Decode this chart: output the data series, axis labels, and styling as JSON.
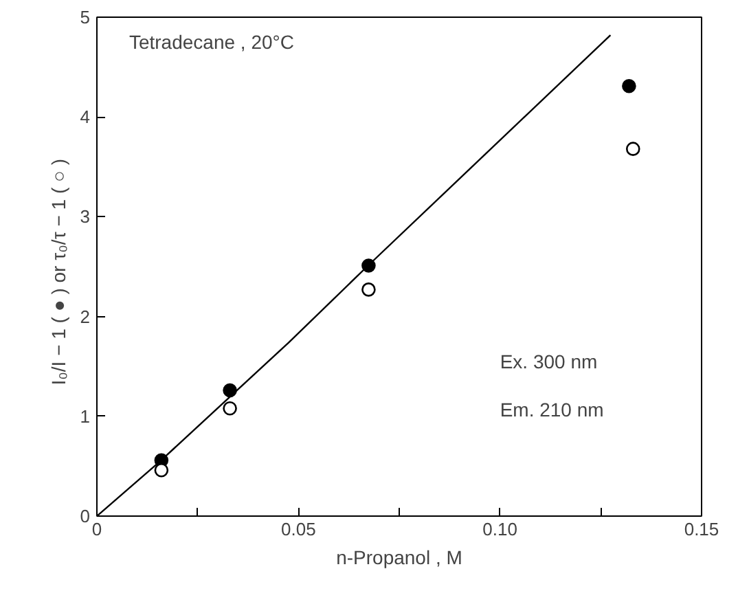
{
  "chart_data": {
    "type": "scatter",
    "xlabel": "n-Propanol , M",
    "ylabel": "I₀/I − 1 ( ● )  or  τ₀/τ − 1 ( ○ )",
    "xlim": [
      0,
      0.15
    ],
    "ylim": [
      0,
      5
    ],
    "xticks": [
      0,
      {
        "value": 0.025,
        "label": null
      },
      0.05,
      {
        "value": 0.075,
        "label": null
      },
      {
        "value": 0.1,
        "label": "0.10"
      },
      {
        "value": 0.125,
        "label": null
      },
      0.15
    ],
    "yticks": [
      0,
      1,
      2,
      3,
      4,
      5
    ],
    "grid": false,
    "annotations": [
      "Tetradecane , 20°C",
      "Ex. 300 nm",
      "Em. 210 nm"
    ],
    "series": [
      {
        "marker": "circle",
        "color": "#000000",
        "x": [
          0.016,
          0.033,
          0.0674,
          0.132
        ],
        "values": [
          0.56,
          1.26,
          2.51,
          4.31
        ]
      },
      {
        "marker": "circle",
        "color": "#ffffff",
        "x": [
          0.016,
          0.033,
          0.0674,
          0.133
        ],
        "values": [
          0.46,
          1.08,
          2.27,
          3.68
        ]
      },
      {
        "type": "line",
        "color": "#000000",
        "x": [
          0,
          0.0157,
          0.0476,
          0.067,
          0.1274
        ],
        "values": [
          0,
          0.55,
          1.74,
          2.5,
          4.82
        ]
      }
    ]
  }
}
